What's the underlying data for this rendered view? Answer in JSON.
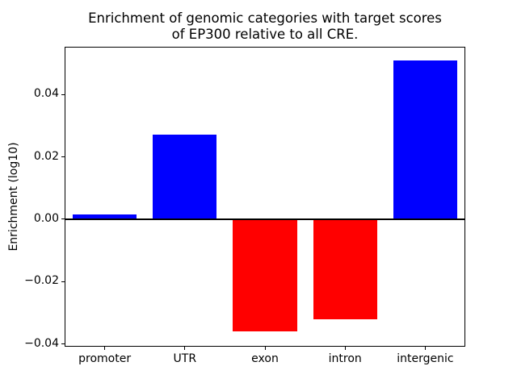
{
  "chart_data": {
    "type": "bar",
    "title": "Enrichment of genomic categories with target scores\nof EP300 relative to all CRE.",
    "ylabel": "Enrichment (log10)",
    "xlabel": "",
    "categories": [
      "promoter",
      "UTR",
      "exon",
      "intron",
      "intergenic"
    ],
    "values": [
      0.0015,
      0.027,
      -0.036,
      -0.032,
      0.051
    ],
    "bar_colors": [
      "#0000ff",
      "#0000ff",
      "#ff0000",
      "#ff0000",
      "#0000ff"
    ],
    "positive_color": "#0000ff",
    "negative_color": "#ff0000",
    "ylim": [
      -0.0409,
      0.0553
    ],
    "y_ticks": [
      0.04,
      0.02,
      0.0,
      -0.02,
      -0.04
    ],
    "y_tick_labels": [
      "0.04",
      "0.02",
      "0.00",
      "−0.02",
      "−0.04"
    ],
    "zero_line_color": "#000000",
    "grid": false,
    "legend_position": "none",
    "bar_width_fraction": 0.8
  }
}
